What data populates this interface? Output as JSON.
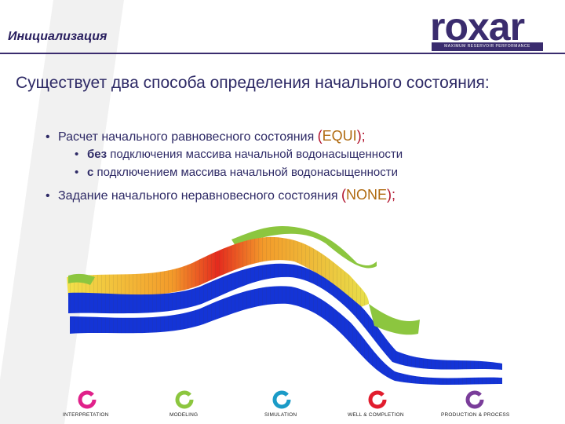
{
  "header": {
    "title": "Инициализация"
  },
  "logo": {
    "word": "roxar",
    "tagline": "MAXIMUM RESERVOIR PERFORMANCE"
  },
  "main": {
    "heading": "Существует два способа определения начального состояния:",
    "bullet1": {
      "text": "Расчет начального равновесного состояния ",
      "kw": "EQUI",
      "paren_open": "(",
      "paren_close": ");"
    },
    "sub1": {
      "bold": "без",
      "text": " подключения массива начальной водонасыщенности"
    },
    "sub2": {
      "bold": "с",
      "text": " подключением массива начальной водонасыщенности"
    },
    "bullet2": {
      "text": "Задание начального неравновесного состояния ",
      "kw": "NONE",
      "paren_open": "(",
      "paren_close": ");"
    }
  },
  "footer": {
    "items": [
      {
        "label": "INTERPRETATION",
        "color": "#e0218a"
      },
      {
        "label": "MODELING",
        "color": "#8cc63f"
      },
      {
        "label": "SIMULATION",
        "color": "#1b9bc7"
      },
      {
        "label": "WELL & COMPLETION",
        "color": "#e11d2e"
      },
      {
        "label": "PRODUCTION & PROCESS",
        "color": "#7a3d9a"
      }
    ]
  }
}
